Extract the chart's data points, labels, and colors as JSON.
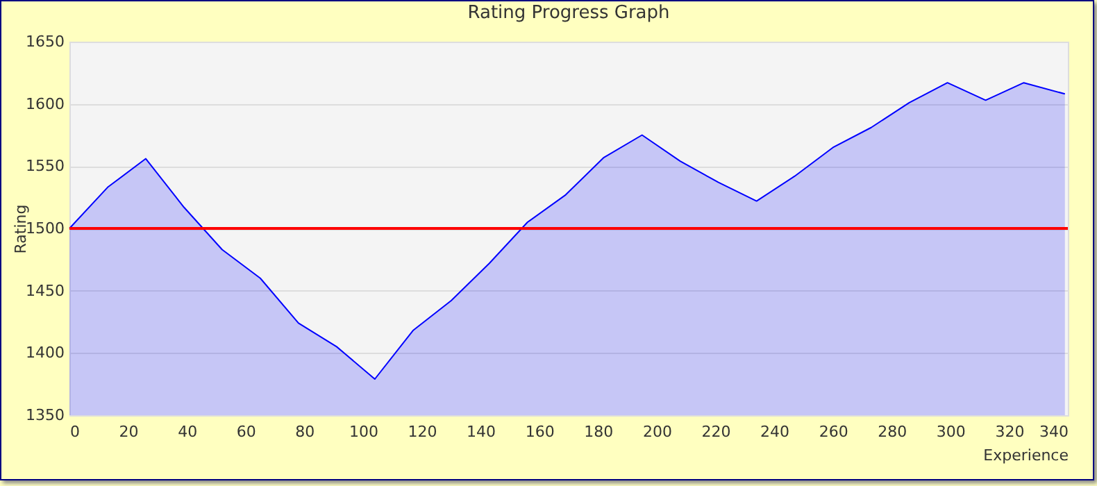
{
  "chart_data": {
    "type": "area",
    "title": "Rating Progress Graph",
    "xlabel": "Experience",
    "ylabel": "Rating",
    "x": [
      0,
      13,
      26,
      39,
      52,
      65,
      78,
      91,
      104,
      117,
      130,
      143,
      156,
      169,
      182,
      195,
      208,
      221,
      234,
      247,
      260,
      273,
      286,
      299,
      312,
      325,
      339
    ],
    "series": [
      {
        "color": "#0000ff",
        "values": [
          1500,
          1533,
          1556,
          1517,
          1483,
          1460,
          1424,
          1405,
          1379,
          1418,
          1442,
          1472,
          1505,
          1527,
          1557,
          1575,
          1554,
          1537,
          1522,
          1542,
          1565,
          1581,
          1601,
          1617,
          1603,
          1617,
          1608
        ]
      }
    ],
    "xlim": [
      0,
      340
    ],
    "xticks": [
      0,
      20,
      40,
      60,
      80,
      100,
      120,
      140,
      160,
      180,
      200,
      220,
      240,
      260,
      280,
      300,
      320,
      340
    ],
    "ylim": [
      1350,
      1650
    ],
    "yticks": [
      1350,
      1400,
      1450,
      1500,
      1550,
      1600,
      1650
    ],
    "ref_lines": [
      {
        "axis": "y",
        "value": 1500,
        "color": "#ff0000"
      }
    ],
    "grid": "y"
  }
}
